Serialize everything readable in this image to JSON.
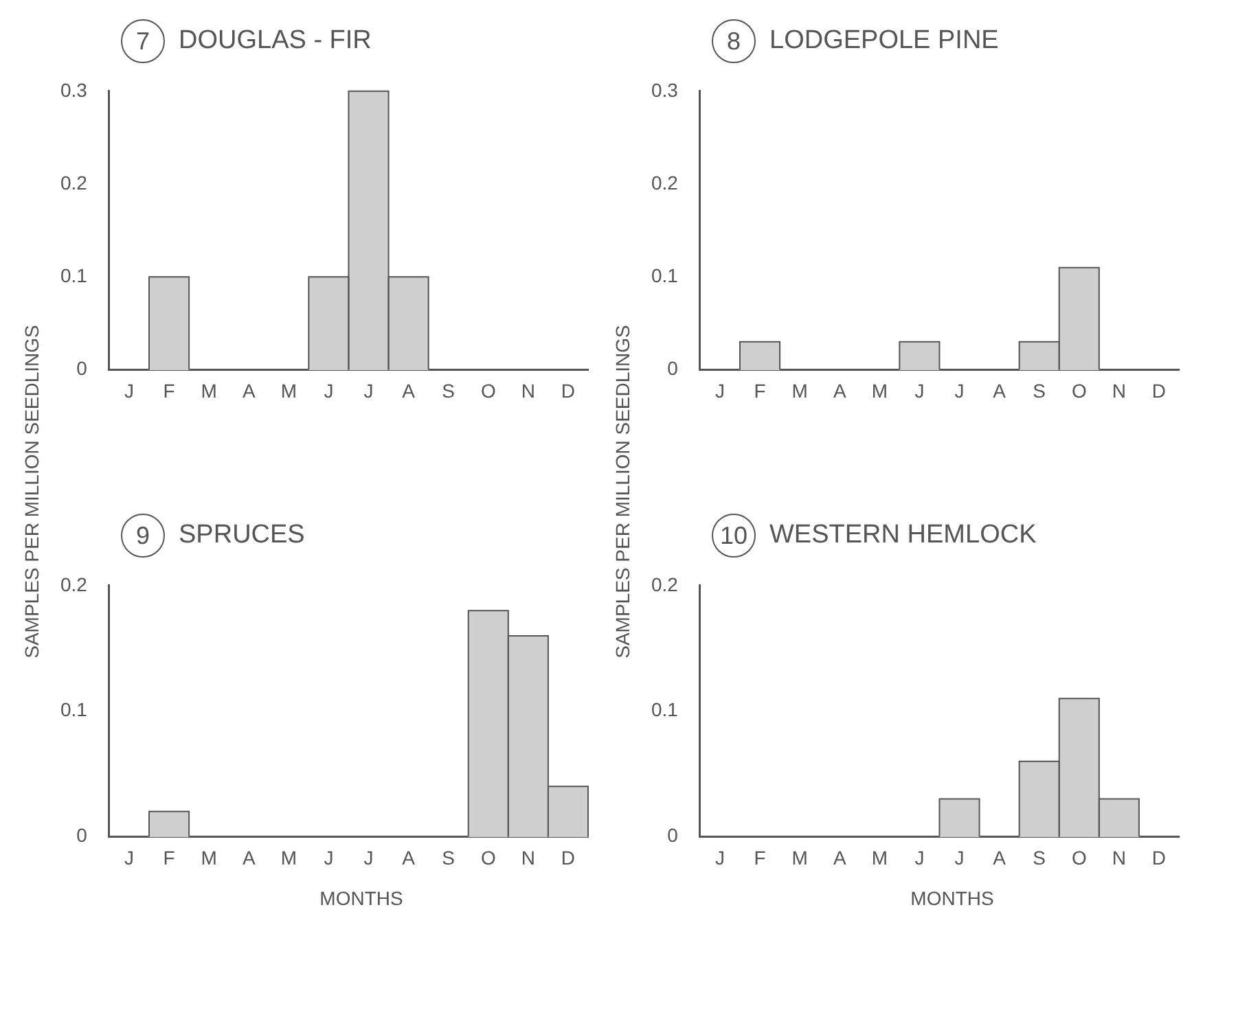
{
  "chart_data": [
    {
      "type": "bar",
      "title": "DOUGLAS - FIR",
      "annotations": [
        "7"
      ],
      "ylabel": "SAMPLES PER MILLION SEEDLINGS",
      "categories": [
        "J",
        "F",
        "M",
        "A",
        "M",
        "J",
        "J",
        "A",
        "S",
        "O",
        "N",
        "D"
      ],
      "values": [
        0,
        0.1,
        0,
        0,
        0,
        0.1,
        0.3,
        0.1,
        0,
        0,
        0,
        0
      ],
      "color": "#cfcfcf",
      "ylim": [
        0,
        0.3
      ],
      "yticks": [
        0,
        0.1,
        0.2,
        0.3
      ]
    },
    {
      "type": "bar",
      "title": "LODGEPOLE PINE",
      "annotations": [
        "8"
      ],
      "ylabel": "SAMPLES PER MILLION SEEDLINGS",
      "categories": [
        "J",
        "F",
        "M",
        "A",
        "M",
        "J",
        "J",
        "A",
        "S",
        "O",
        "N",
        "D"
      ],
      "values": [
        0,
        0.03,
        0,
        0,
        0,
        0.03,
        0,
        0,
        0.03,
        0.11,
        0,
        0
      ],
      "color": "#cfcfcf",
      "ylim": [
        0,
        0.3
      ],
      "yticks": [
        0,
        0.1,
        0.2,
        0.3
      ]
    },
    {
      "type": "bar",
      "title": "SPRUCES",
      "annotations": [
        "9"
      ],
      "xlabel": "MONTHS",
      "categories": [
        "J",
        "F",
        "M",
        "A",
        "M",
        "J",
        "J",
        "A",
        "S",
        "O",
        "N",
        "D"
      ],
      "values": [
        0,
        0.02,
        0,
        0,
        0,
        0,
        0,
        0,
        0,
        0.18,
        0.16,
        0.04
      ],
      "color": "#cfcfcf",
      "ylim": [
        0,
        0.2
      ],
      "yticks": [
        0,
        0.1,
        0.2
      ]
    },
    {
      "type": "bar",
      "title": "WESTERN HEMLOCK",
      "annotations": [
        "10"
      ],
      "xlabel": "MONTHS",
      "categories": [
        "J",
        "F",
        "M",
        "A",
        "M",
        "J",
        "J",
        "A",
        "S",
        "O",
        "N",
        "D"
      ],
      "values": [
        0,
        0,
        0,
        0,
        0,
        0,
        0.03,
        0,
        0.06,
        0.11,
        0.03,
        0
      ],
      "color": "#cfcfcf",
      "ylim": [
        0,
        0.2
      ],
      "yticks": [
        0,
        0.1,
        0.2
      ]
    }
  ]
}
